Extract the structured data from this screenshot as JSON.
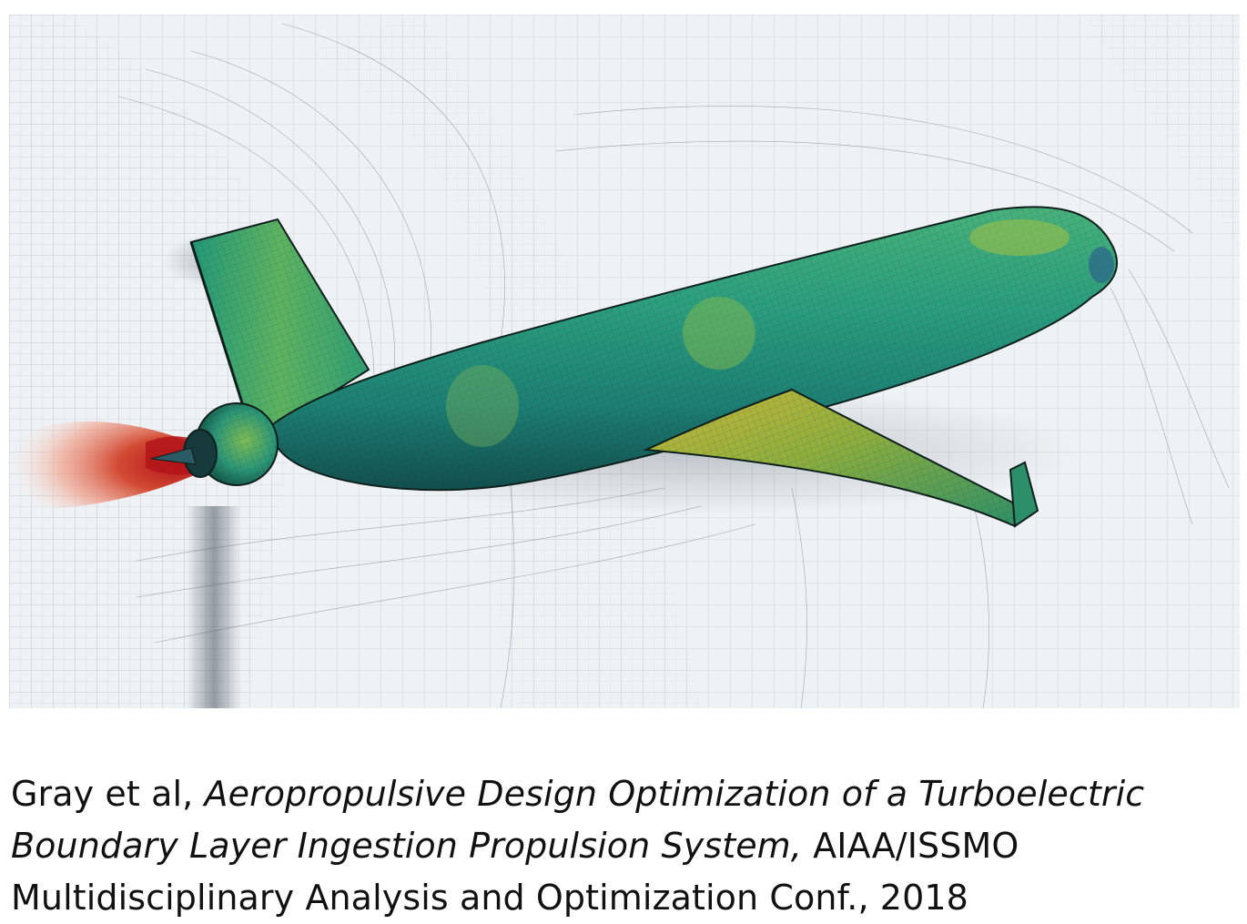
{
  "figure": {
    "icon": "cfd-aircraft-mesh-image",
    "colors": {
      "background": "#eef2f5",
      "mesh": "#5a6068",
      "surface_green": "#1f9a78",
      "surface_yellow": "#b5c23a",
      "exhaust_red": "#c0231f"
    }
  },
  "citation": {
    "authors": "Gray et al,",
    "title_line1": "Aeropropulsive Design Optimization of a Turboelectric",
    "title_line2": "Boundary Layer Ingestion Propulsion System,",
    "venue_line2": "AIAA/ISSMO",
    "venue_line3": "Multidisciplinary Analysis and Optimization Conf., 2018"
  }
}
